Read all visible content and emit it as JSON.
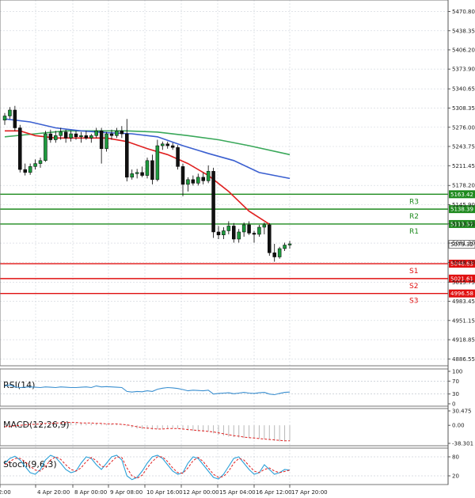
{
  "chart_data": {
    "type": "candlestick",
    "price_axis": {
      "ticks": [
        "5470.80",
        "5438.35",
        "5406.20",
        "5373.90",
        "5340.65",
        "5308.35",
        "5276.00",
        "5243.75",
        "5211.45",
        "5178.20",
        "5145.90",
        "5113.55",
        "5081.30",
        "5048.90",
        "5015.75",
        "4983.45",
        "4951.15",
        "4918.85",
        "4886.55"
      ],
      "range": [
        4875,
        5490
      ]
    },
    "time_axis": {
      "ticks": [
        "2:00",
        "4 Apr 20:00",
        "8 Apr 00:00",
        "9 Apr 08:00",
        "10 Apr 16:00",
        "12 Apr 00:00",
        "15 Apr 04:00",
        "16 Apr 12:00",
        "17 Apr 20:00"
      ]
    },
    "levels": [
      {
        "name": "R3",
        "value": 5163.42,
        "tag": "5163.42",
        "color": "#1e8a1e"
      },
      {
        "name": "R2",
        "value": 5138.39,
        "tag": "5138.39",
        "color": "#1e8a1e"
      },
      {
        "name": "R1",
        "value": 5113.37,
        "tag": "5113.37",
        "color": "#1e8a1e"
      },
      {
        "name": "S1",
        "value": 5046.63,
        "tag": "5046.63",
        "color": "#e01010"
      },
      {
        "name": "S2",
        "value": 5021.61,
        "tag": "5021.61",
        "color": "#e01010"
      },
      {
        "name": "S3",
        "value": 4996.58,
        "tag": "4996.58",
        "color": "#e01010"
      }
    ],
    "last_price": {
      "value": 5079.32,
      "tag": "5079.32"
    },
    "candles": [
      [
        5288,
        5300,
        5280,
        5295
      ],
      [
        5295,
        5310,
        5290,
        5305
      ],
      [
        5305,
        5312,
        5270,
        5275
      ],
      [
        5275,
        5280,
        5200,
        5205
      ],
      [
        5205,
        5215,
        5195,
        5200
      ],
      [
        5200,
        5215,
        5196,
        5210
      ],
      [
        5210,
        5222,
        5205,
        5215
      ],
      [
        5215,
        5225,
        5208,
        5220
      ],
      [
        5220,
        5270,
        5218,
        5265
      ],
      [
        5265,
        5272,
        5250,
        5255
      ],
      [
        5255,
        5270,
        5250,
        5262
      ],
      [
        5262,
        5275,
        5255,
        5268
      ],
      [
        5268,
        5272,
        5250,
        5258
      ],
      [
        5258,
        5270,
        5252,
        5265
      ],
      [
        5265,
        5270,
        5255,
        5260
      ],
      [
        5260,
        5268,
        5250,
        5262
      ],
      [
        5262,
        5270,
        5255,
        5258
      ],
      [
        5258,
        5265,
        5250,
        5262
      ],
      [
        5262,
        5275,
        5258,
        5270
      ],
      [
        5270,
        5275,
        5215,
        5240
      ],
      [
        5240,
        5268,
        5235,
        5265
      ],
      [
        5265,
        5272,
        5255,
        5262
      ],
      [
        5262,
        5275,
        5258,
        5270
      ],
      [
        5270,
        5278,
        5258,
        5265
      ],
      [
        5265,
        5290,
        5185,
        5192
      ],
      [
        5192,
        5205,
        5188,
        5198
      ],
      [
        5198,
        5206,
        5190,
        5200
      ],
      [
        5200,
        5210,
        5192,
        5195
      ],
      [
        5195,
        5225,
        5190,
        5220
      ],
      [
        5220,
        5230,
        5180,
        5188
      ],
      [
        5188,
        5255,
        5185,
        5245
      ],
      [
        5245,
        5252,
        5238,
        5248
      ],
      [
        5248,
        5252,
        5240,
        5245
      ],
      [
        5245,
        5250,
        5238,
        5242
      ],
      [
        5242,
        5246,
        5205,
        5210
      ],
      [
        5210,
        5215,
        5160,
        5180
      ],
      [
        5180,
        5192,
        5168,
        5188
      ],
      [
        5188,
        5195,
        5178,
        5182
      ],
      [
        5182,
        5198,
        5178,
        5192
      ],
      [
        5192,
        5200,
        5180,
        5186
      ],
      [
        5186,
        5212,
        5182,
        5202
      ],
      [
        5202,
        5208,
        5090,
        5100
      ],
      [
        5100,
        5110,
        5088,
        5095
      ],
      [
        5095,
        5108,
        5088,
        5102
      ],
      [
        5102,
        5118,
        5096,
        5110
      ],
      [
        5110,
        5115,
        5082,
        5088
      ],
      [
        5088,
        5105,
        5082,
        5100
      ],
      [
        5100,
        5116,
        5092,
        5112
      ],
      [
        5112,
        5118,
        5095,
        5098
      ],
      [
        5098,
        5102,
        5082,
        5096
      ],
      [
        5096,
        5112,
        5092,
        5108
      ],
      [
        5108,
        5116,
        5096,
        5112
      ],
      [
        5112,
        5115,
        5060,
        5065
      ],
      [
        5065,
        5080,
        5050,
        5058
      ],
      [
        5058,
        5075,
        5055,
        5072
      ],
      [
        5072,
        5082,
        5068,
        5078
      ],
      [
        5078,
        5085,
        5072,
        5080
      ]
    ],
    "ma_red": [
      [
        0,
        5270
      ],
      [
        3,
        5270
      ],
      [
        6,
        5262
      ],
      [
        10,
        5258
      ],
      [
        15,
        5258
      ],
      [
        20,
        5258
      ],
      [
        24,
        5252
      ],
      [
        28,
        5240
      ],
      [
        32,
        5230
      ],
      [
        36,
        5215
      ],
      [
        40,
        5195
      ],
      [
        44,
        5168
      ],
      [
        48,
        5135
      ],
      [
        52,
        5113
      ]
    ],
    "ma_blue": [
      [
        0,
        5290
      ],
      [
        5,
        5285
      ],
      [
        10,
        5275
      ],
      [
        15,
        5270
      ],
      [
        20,
        5267
      ],
      [
        25,
        5265
      ],
      [
        30,
        5260
      ],
      [
        35,
        5245
      ],
      [
        40,
        5232
      ],
      [
        45,
        5220
      ],
      [
        50,
        5200
      ],
      [
        56,
        5190
      ]
    ],
    "ma_green": [
      [
        0,
        5260
      ],
      [
        6,
        5265
      ],
      [
        12,
        5270
      ],
      [
        18,
        5270
      ],
      [
        24,
        5270
      ],
      [
        30,
        5268
      ],
      [
        36,
        5262
      ],
      [
        42,
        5255
      ],
      [
        48,
        5245
      ],
      [
        56,
        5230
      ]
    ],
    "rsi": {
      "label": "RSI(14)",
      "ticks": [
        "100",
        "70",
        "30",
        "0"
      ],
      "values": [
        55,
        58,
        52,
        50,
        51,
        52,
        51,
        50,
        52,
        51,
        50,
        52,
        51,
        50,
        50,
        51,
        52,
        50,
        55,
        52,
        53,
        52,
        51,
        50,
        38,
        36,
        38,
        37,
        40,
        38,
        45,
        48,
        50,
        49,
        47,
        44,
        40,
        42,
        41,
        40,
        42,
        30,
        32,
        33,
        34,
        31,
        33,
        35,
        33,
        32,
        34,
        35,
        30,
        28,
        32,
        35,
        36
      ]
    },
    "macd": {
      "label": "MACD(12,26,9)",
      "ticks": [
        "30.475",
        "0.00",
        "-38.301"
      ],
      "hist": [
        -2,
        -1,
        0,
        1,
        2,
        2,
        3,
        4,
        5,
        5,
        6,
        6,
        6,
        6,
        5,
        5,
        4,
        4,
        4,
        3,
        3,
        3,
        2,
        1,
        -2,
        -5,
        -7,
        -8,
        -8,
        -9,
        -8,
        -7,
        -6,
        -6,
        -7,
        -9,
        -11,
        -12,
        -13,
        -13,
        -13,
        -17,
        -20,
        -22,
        -24,
        -25,
        -26,
        -27,
        -27,
        -28,
        -28,
        -29,
        -31,
        -33,
        -34,
        -34,
        -33
      ],
      "signal": [
        -3,
        -2,
        -1,
        0,
        1,
        2,
        2,
        3,
        4,
        4,
        5,
        5,
        6,
        6,
        6,
        5,
        5,
        5,
        4,
        4,
        3,
        3,
        3,
        2,
        1,
        -1,
        -3,
        -5,
        -6,
        -7,
        -8,
        -8,
        -7,
        -7,
        -7,
        -8,
        -9,
        -10,
        -11,
        -12,
        -13,
        -14,
        -16,
        -18,
        -20,
        -22,
        -23,
        -25,
        -26,
        -27,
        -28,
        -29,
        -30,
        -31,
        -32,
        -33,
        -33
      ]
    },
    "stoch": {
      "label": "Stoch(9,6,3)",
      "ticks": [
        "80",
        "20"
      ],
      "k": [
        60,
        75,
        82,
        70,
        50,
        30,
        25,
        40,
        70,
        85,
        78,
        60,
        40,
        30,
        35,
        60,
        80,
        75,
        55,
        40,
        60,
        80,
        85,
        70,
        20,
        8,
        15,
        35,
        60,
        80,
        85,
        75,
        55,
        35,
        25,
        30,
        60,
        80,
        75,
        55,
        35,
        15,
        10,
        25,
        50,
        75,
        80,
        60,
        40,
        25,
        30,
        55,
        40,
        25,
        30,
        40,
        38
      ],
      "d": [
        55,
        65,
        75,
        75,
        65,
        50,
        38,
        35,
        50,
        70,
        80,
        72,
        55,
        40,
        35,
        45,
        65,
        78,
        68,
        50,
        48,
        65,
        80,
        78,
        45,
        20,
        12,
        22,
        45,
        65,
        80,
        80,
        65,
        45,
        30,
        28,
        45,
        68,
        78,
        65,
        45,
        25,
        15,
        18,
        35,
        60,
        75,
        70,
        52,
        35,
        30,
        40,
        45,
        35,
        30,
        34,
        38
      ]
    }
  }
}
